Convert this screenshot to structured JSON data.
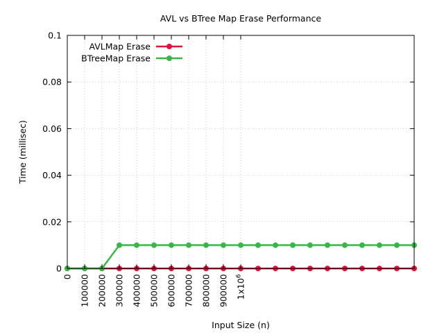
{
  "chart_data": {
    "type": "line",
    "title": "AVL vs BTree Map Erase Performance",
    "xlabel": "Input Size (n)",
    "ylabel": "Time (millisec)",
    "xlim": [
      0,
      2000000
    ],
    "ylim": [
      0,
      0.1
    ],
    "grid": true,
    "legend_position": "top-left",
    "x_tick_values": [
      0,
      100000,
      200000,
      300000,
      400000,
      500000,
      600000,
      700000,
      800000,
      900000,
      1000000
    ],
    "x_tick_labels": [
      "0",
      "100000",
      "200000",
      "300000",
      "400000",
      "500000",
      "600000",
      "700000",
      "800000",
      "900000",
      "1x10"
    ],
    "x_tick_superscript": "6",
    "y_tick_values": [
      0,
      0.02,
      0.04,
      0.06,
      0.08,
      0.1
    ],
    "y_tick_labels": [
      "0",
      "0.02",
      "0.04",
      "0.06",
      "0.08",
      "0.1"
    ],
    "x": [
      0,
      100000,
      200000,
      300000,
      400000,
      500000,
      600000,
      700000,
      800000,
      900000,
      1000000,
      1100000,
      1200000,
      1300000,
      1400000,
      1500000,
      1600000,
      1700000,
      1800000,
      1900000,
      2000000
    ],
    "series": [
      {
        "name": "AVLMap Erase",
        "color": "#dc143c",
        "values": [
          0,
          0,
          0,
          0,
          0,
          0,
          0,
          0,
          0,
          0,
          0,
          0,
          0,
          0,
          0,
          0,
          0,
          0,
          0,
          0,
          0
        ]
      },
      {
        "name": "BTreeMap Erase",
        "color": "#3cb44b",
        "values": [
          0,
          0,
          0,
          0.01,
          0.01,
          0.01,
          0.01,
          0.01,
          0.01,
          0.01,
          0.01,
          0.01,
          0.01,
          0.01,
          0.01,
          0.01,
          0.01,
          0.01,
          0.01,
          0.01,
          0.01
        ]
      }
    ]
  }
}
